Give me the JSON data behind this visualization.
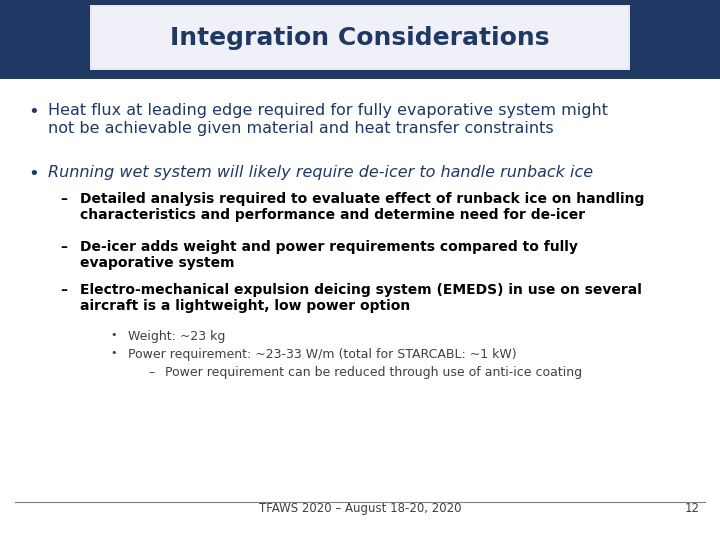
{
  "title": "Integration Considerations",
  "title_color": "#1F3864",
  "background_color": "#FFFFFF",
  "header_navy": "#1F3864",
  "header_silver": "#D8D8E8",
  "bullet1_color": "#1F3864",
  "bullet1_line1": "Heat flux at leading edge required for fully evaporative system might",
  "bullet1_line2": "not be achievable given material and heat transfer constraints",
  "bullet2_color": "#1F3864",
  "bullet2": "Running wet system will likely require de-icer to handle runback ice",
  "sub1_line1": "Detailed analysis required to evaluate effect of runback ice on handling",
  "sub1_line2": "characteristics and performance and determine need for de-icer",
  "sub2_line1": "De-icer adds weight and power requirements compared to fully",
  "sub2_line2": "evaporative system",
  "sub3_line1": "Electro-mechanical expulsion deicing system (EMEDS) in use on several",
  "sub3_line2": "aircraft is a lightweight, low power option",
  "sub3_sub1": "Weight: ~23 kg",
  "sub3_sub2": "Power requirement: ~23-33 W/m (total for STARCABL: ~1 kW)",
  "sub3_sub3": "Power requirement can be reduced through use of anti-ice coating",
  "footer": "TFAWS 2020 – August 18-20, 2020",
  "page_num": "12",
  "sub_bold_color": "#000000",
  "sub_light_color": "#404040"
}
